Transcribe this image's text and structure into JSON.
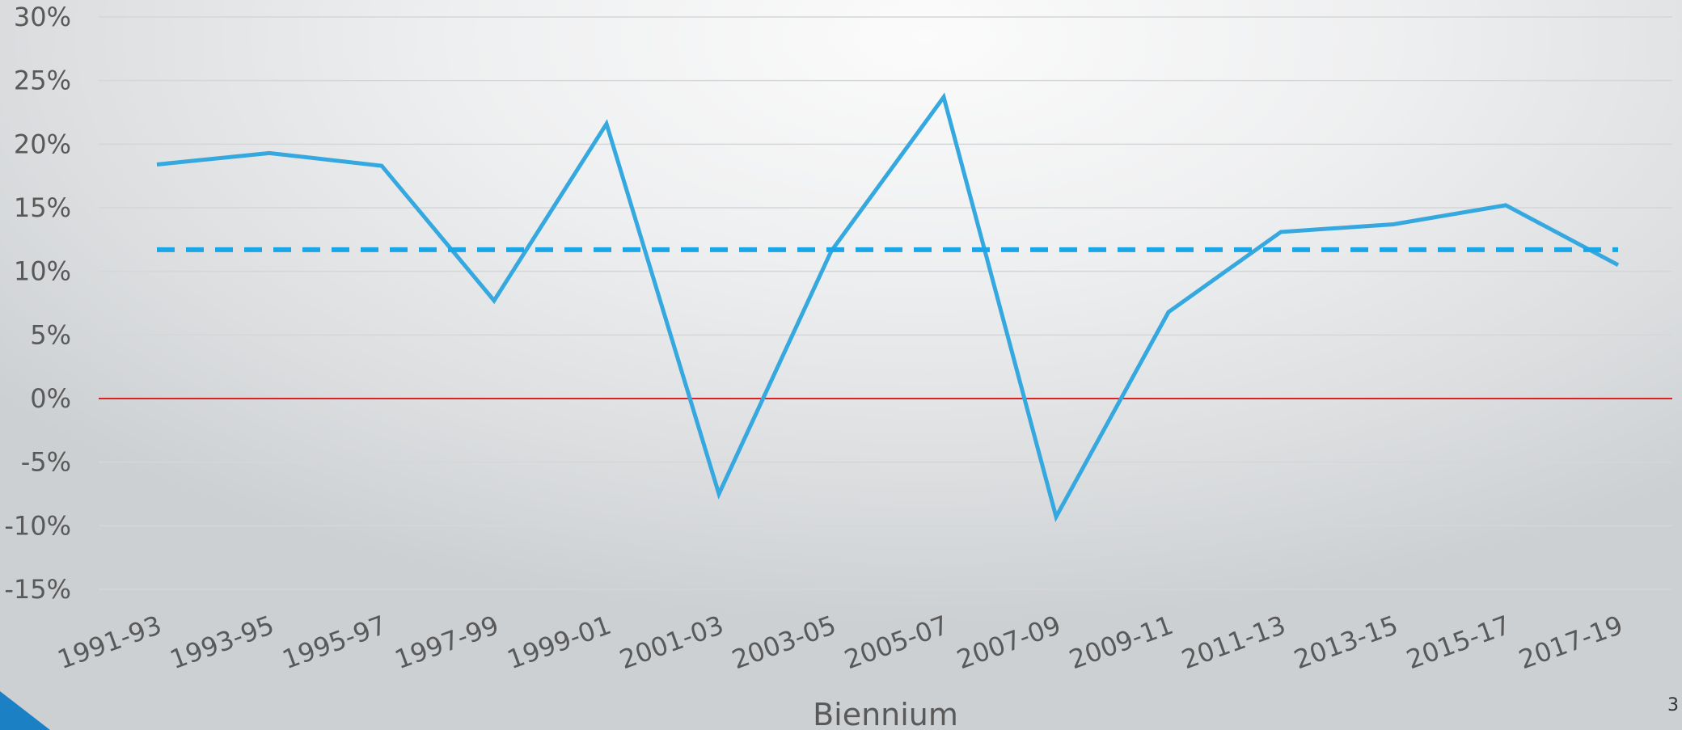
{
  "slide": {
    "number": "3"
  },
  "colors": {
    "series_line": "#35a8e0",
    "average_line": "#1aa6e6",
    "zero_line": "#e02020",
    "grid": "#d4d6d8",
    "text": "#595959",
    "accent": "#1b80c4"
  },
  "chart_data": {
    "type": "line",
    "title": "",
    "xlabel": "Biennium",
    "ylabel": "",
    "categories": [
      "1991-93",
      "1993-95",
      "1995-97",
      "1997-99",
      "1999-01",
      "2001-03",
      "2003-05",
      "2005-07",
      "2007-09",
      "2009-11",
      "2011-13",
      "2013-15",
      "2015-17",
      "2017-19"
    ],
    "ylim": [
      -15,
      30
    ],
    "y_ticks": [
      30,
      25,
      20,
      15,
      10,
      5,
      0,
      -5,
      -10,
      -15
    ],
    "y_tick_labels": [
      "30%",
      "25%",
      "20%",
      "15%",
      "10%",
      "5%",
      "0%",
      "-5%",
      "-10%",
      "-15%"
    ],
    "y_unit": "%",
    "grid": true,
    "legend": "none",
    "series": [
      {
        "style": "solid",
        "values": [
          18.4,
          19.3,
          18.3,
          7.7,
          21.6,
          -7.5,
          11.6,
          23.7,
          -9.3,
          6.8,
          13.1,
          13.7,
          15.2,
          10.5
        ]
      },
      {
        "style": "dashed",
        "values": [
          11.7,
          11.7,
          11.7,
          11.7,
          11.7,
          11.7,
          11.7,
          11.7,
          11.7,
          11.7,
          11.7,
          11.7,
          11.7,
          11.7
        ]
      }
    ],
    "reference_lines": [
      {
        "y": 0,
        "color": "#e02020"
      }
    ]
  }
}
